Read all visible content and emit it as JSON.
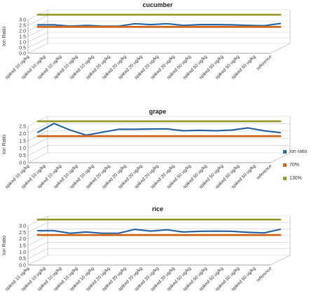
{
  "series_styles": {
    "ion_ratio": {
      "color": "#2f6aa8"
    },
    "lower": {
      "color": "#d2691e"
    },
    "upper": {
      "color": "#9a9a2e"
    }
  },
  "legend": [
    {
      "key": "ion_ratio",
      "label": "Ion ratio",
      "color": "#2f6aa8"
    },
    {
      "key": "lower",
      "label": "70%",
      "color": "#d2691e"
    },
    {
      "key": "upper",
      "label": "130%",
      "color": "#9a9a2e"
    }
  ],
  "chart_data": [
    {
      "type": "line",
      "title": "cucumber",
      "ylabel": "Ion Ratio",
      "xlabel": "",
      "ylim": [
        0,
        3.0
      ],
      "yticks": [
        "0.0",
        "0.5",
        "1.0",
        "1.5",
        "2.0",
        "2.5",
        "3.0"
      ],
      "categories": [
        "spiked 10 ug/kg",
        "spiked 10 ug/kg",
        "spiked 10 ug/kg",
        "spiked 10 ug/kg",
        "spiked 10 ug/kg",
        "spiked 20 ug/kg",
        "spiked 20 ug/kg",
        "spiked 20 ug/kg",
        "spiked 20 ug/kg",
        "spiked 20 ug/kg",
        "spiked 50 ug/kg",
        "spiked 50 ug/kg",
        "spiked 50 ug/kg",
        "spiked 50 ug/kg",
        "spiked 50 ug/kg",
        "reference"
      ],
      "series": [
        {
          "key": "ion_ratio",
          "name": "Ion ratio",
          "values": [
            2.1,
            2.1,
            1.98,
            2.05,
            1.98,
            1.98,
            2.2,
            2.12,
            2.2,
            2.05,
            2.12,
            2.12,
            2.1,
            2.05,
            2.02,
            2.22
          ]
        },
        {
          "key": "lower",
          "name": "70%",
          "values": [
            1.92,
            1.92,
            1.92,
            1.92,
            1.92,
            1.92,
            1.92,
            1.92,
            1.92,
            1.92,
            1.92,
            1.92,
            1.92,
            1.92,
            1.92,
            1.92
          ]
        },
        {
          "key": "upper",
          "name": "130%",
          "values": [
            3.0,
            3.0,
            3.0,
            3.0,
            3.0,
            3.0,
            3.0,
            3.0,
            3.0,
            3.0,
            3.0,
            3.0,
            3.0,
            3.0,
            3.0,
            3.0
          ]
        }
      ]
    },
    {
      "type": "line",
      "title": "grape",
      "ylabel": "Ion Ratio",
      "xlabel": "",
      "ylim": [
        0,
        2.5
      ],
      "yticks": [
        "0.0",
        "0.5",
        "1.0",
        "1.5",
        "2.0",
        "2.5"
      ],
      "categories": [
        "spiked 10 ug/kg",
        "spiked 10 ug/kg",
        "spiked 10 ug/kg",
        "spiked 10 ug/kg",
        "spiked 10 ug/kg",
        "spiked 20 ug/kg",
        "spiked 20 ug/kg",
        "spiked 20 ug/kg",
        "spiked 20 ug/kg",
        "spiked 20 ug/kg",
        "spiked 50 ug/kg",
        "spiked 50 ug/kg",
        "spiked 50 ug/kg",
        "spiked 50 ug/kg",
        "spiked 50 ug/kg",
        "reference"
      ],
      "series": [
        {
          "key": "ion_ratio",
          "name": "Ion ratio",
          "values": [
            1.75,
            2.35,
            1.9,
            1.55,
            1.75,
            1.95,
            1.95,
            1.97,
            1.98,
            1.85,
            1.88,
            1.85,
            1.9,
            2.05,
            1.85,
            1.72
          ]
        },
        {
          "key": "lower",
          "name": "70%",
          "values": [
            1.48,
            1.48,
            1.48,
            1.48,
            1.48,
            1.48,
            1.48,
            1.48,
            1.48,
            1.48,
            1.48,
            1.48,
            1.48,
            1.48,
            1.48,
            1.48
          ]
        },
        {
          "key": "upper",
          "name": "130%",
          "values": [
            2.5,
            2.5,
            2.5,
            2.5,
            2.5,
            2.5,
            2.5,
            2.5,
            2.5,
            2.5,
            2.5,
            2.5,
            2.5,
            2.5,
            2.5,
            2.5
          ]
        }
      ]
    },
    {
      "type": "line",
      "title": "rice",
      "ylabel": "Ion Ratio",
      "xlabel": "",
      "ylim": [
        0,
        3.0
      ],
      "yticks": [
        "0.0",
        "0.5",
        "1.0",
        "1.5",
        "2.0",
        "2.5",
        "3.0"
      ],
      "categories": [
        "spiked 10 ug/kg",
        "spiked 10 ug/kg",
        "spiked 10 ug/kg",
        "spiked 10 ug/kg",
        "spiked 10 ug/kg",
        "spiked 20 ug/kg",
        "spiked 20 ug/kg",
        "spiked 20 ug/kg",
        "spiked 20 ug/kg",
        "spiked 20 ug/kg",
        "spiked 50 ug/kg",
        "spiked 50 ug/kg",
        "spiked 50 ug/kg",
        "spiked 50 ug/kg",
        "spiked 50 ug/kg",
        "reference"
      ],
      "series": [
        {
          "key": "ion_ratio",
          "name": "Ion ratio",
          "values": [
            2.25,
            2.25,
            2.05,
            2.15,
            2.05,
            2.05,
            2.35,
            2.22,
            2.32,
            2.15,
            2.2,
            2.22,
            2.2,
            2.12,
            2.08,
            2.35
          ]
        },
        {
          "key": "lower",
          "name": "70%",
          "values": [
            1.92,
            1.92,
            1.92,
            1.92,
            1.92,
            1.92,
            1.92,
            1.92,
            1.92,
            1.92,
            1.92,
            1.92,
            1.92,
            1.92,
            1.92,
            1.92
          ]
        },
        {
          "key": "upper",
          "name": "130%",
          "values": [
            3.1,
            3.1,
            3.1,
            3.1,
            3.1,
            3.1,
            3.1,
            3.1,
            3.1,
            3.1,
            3.1,
            3.1,
            3.1,
            3.1,
            3.1,
            3.1
          ]
        }
      ]
    }
  ]
}
